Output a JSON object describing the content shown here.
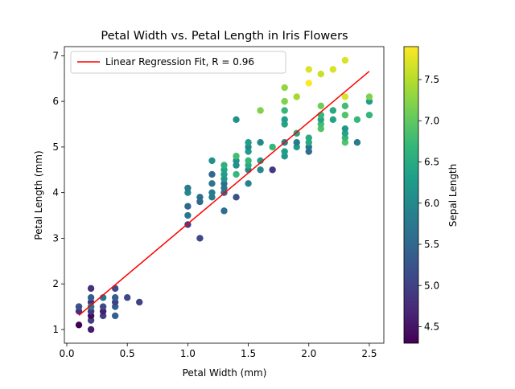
{
  "chart_data": {
    "type": "scatter",
    "title": "Petal Width vs. Petal Length in Iris Flowers",
    "xlabel": "Petal Width (mm)",
    "ylabel": "Petal Length (mm)",
    "xlim": [
      -0.02,
      2.62
    ],
    "ylim": [
      0.7,
      7.2
    ],
    "xticks": [
      0.0,
      0.5,
      1.0,
      1.5,
      2.0,
      2.5
    ],
    "yticks": [
      1,
      2,
      3,
      4,
      5,
      6,
      7
    ],
    "xtick_labels": [
      "0.0",
      "0.5",
      "1.0",
      "1.5",
      "2.0",
      "2.5"
    ],
    "ytick_labels": [
      "1",
      "2",
      "3",
      "4",
      "5",
      "6",
      "7"
    ],
    "grid": false,
    "legend": {
      "placement": "top-left",
      "label": "Linear Regression Fit, R = 0.96",
      "color": "#ff0000"
    },
    "regression": {
      "x": [
        0.1,
        2.5
      ],
      "y": [
        1.31,
        6.66
      ]
    },
    "colorbar": {
      "label": "Sepal Length",
      "range": [
        4.3,
        7.9
      ],
      "ticks": [
        4.5,
        5.0,
        5.5,
        6.0,
        6.5,
        7.0,
        7.5
      ],
      "tick_labels": [
        "4.5",
        "5.0",
        "5.5",
        "6.0",
        "6.5",
        "7.0",
        "7.5"
      ],
      "colormap": [
        "#440154",
        "#482878",
        "#3e4989",
        "#31688e",
        "#26828e",
        "#1f9e89",
        "#35b779",
        "#6ece58",
        "#b5de2b",
        "#fde725"
      ]
    },
    "points": [
      [
        0.1,
        1.1,
        4.3
      ],
      [
        0.1,
        1.5,
        4.9
      ],
      [
        0.1,
        1.4,
        4.8
      ],
      [
        0.1,
        1.5,
        5.2
      ],
      [
        0.2,
        1.0,
        4.6
      ],
      [
        0.2,
        1.2,
        5.0
      ],
      [
        0.2,
        1.3,
        4.4
      ],
      [
        0.2,
        1.4,
        5.1
      ],
      [
        0.2,
        1.4,
        4.9
      ],
      [
        0.2,
        1.5,
        5.4
      ],
      [
        0.2,
        1.6,
        4.8
      ],
      [
        0.2,
        1.7,
        5.4
      ],
      [
        0.2,
        1.9,
        4.8
      ],
      [
        0.2,
        1.5,
        5.7
      ],
      [
        0.3,
        1.3,
        5.0
      ],
      [
        0.3,
        1.4,
        4.6
      ],
      [
        0.3,
        1.5,
        5.1
      ],
      [
        0.3,
        1.7,
        5.7
      ],
      [
        0.4,
        1.3,
        5.4
      ],
      [
        0.4,
        1.5,
        5.4
      ],
      [
        0.4,
        1.6,
        5.0
      ],
      [
        0.4,
        1.7,
        5.4
      ],
      [
        0.4,
        1.9,
        5.1
      ],
      [
        0.5,
        1.7,
        5.1
      ],
      [
        0.6,
        1.6,
        5.0
      ],
      [
        1.0,
        3.3,
        5.0
      ],
      [
        1.0,
        3.5,
        5.7
      ],
      [
        1.0,
        3.7,
        5.5
      ],
      [
        1.0,
        4.0,
        6.0
      ],
      [
        1.0,
        4.1,
        5.8
      ],
      [
        1.1,
        3.0,
        5.1
      ],
      [
        1.1,
        3.8,
        5.5
      ],
      [
        1.1,
        3.9,
        5.6
      ],
      [
        1.2,
        3.9,
        5.8
      ],
      [
        1.2,
        4.0,
        5.8
      ],
      [
        1.2,
        4.2,
        5.7
      ],
      [
        1.2,
        4.4,
        5.5
      ],
      [
        1.2,
        4.7,
        6.1
      ],
      [
        1.3,
        3.6,
        5.6
      ],
      [
        1.3,
        4.0,
        5.5
      ],
      [
        1.3,
        4.1,
        5.7
      ],
      [
        1.3,
        4.2,
        5.6
      ],
      [
        1.3,
        4.3,
        6.2
      ],
      [
        1.3,
        4.4,
        6.3
      ],
      [
        1.3,
        4.5,
        6.4
      ],
      [
        1.3,
        4.6,
        6.6
      ],
      [
        1.4,
        3.9,
        5.2
      ],
      [
        1.4,
        4.4,
        6.7
      ],
      [
        1.4,
        4.6,
        6.1
      ],
      [
        1.4,
        4.7,
        6.1
      ],
      [
        1.4,
        4.8,
        6.8
      ],
      [
        1.4,
        5.6,
        6.1
      ],
      [
        1.5,
        4.2,
        5.9
      ],
      [
        1.5,
        4.5,
        6.0
      ],
      [
        1.5,
        4.6,
        6.5
      ],
      [
        1.5,
        4.7,
        6.7
      ],
      [
        1.5,
        4.9,
        6.3
      ],
      [
        1.5,
        5.0,
        6.0
      ],
      [
        1.5,
        5.1,
        6.3
      ],
      [
        1.6,
        4.5,
        6.0
      ],
      [
        1.6,
        4.7,
        6.3
      ],
      [
        1.6,
        5.1,
        6.0
      ],
      [
        1.6,
        5.8,
        7.2
      ],
      [
        1.7,
        4.5,
        4.9
      ],
      [
        1.7,
        5.0,
        6.7
      ],
      [
        1.8,
        4.8,
        6.2
      ],
      [
        1.8,
        4.9,
        6.3
      ],
      [
        1.8,
        5.1,
        5.9
      ],
      [
        1.8,
        5.5,
        6.4
      ],
      [
        1.8,
        5.6,
        6.3
      ],
      [
        1.8,
        5.8,
        6.7
      ],
      [
        1.8,
        6.0,
        7.2
      ],
      [
        1.8,
        6.3,
        7.3
      ],
      [
        1.9,
        5.0,
        6.3
      ],
      [
        1.9,
        5.1,
        5.8
      ],
      [
        1.9,
        5.3,
        6.4
      ],
      [
        1.9,
        6.1,
        7.4
      ],
      [
        2.0,
        4.9,
        5.6
      ],
      [
        2.0,
        5.0,
        5.7
      ],
      [
        2.0,
        5.1,
        6.5
      ],
      [
        2.0,
        5.2,
        6.5
      ],
      [
        2.0,
        6.4,
        7.9
      ],
      [
        2.0,
        6.7,
        7.7
      ],
      [
        2.1,
        5.4,
        6.9
      ],
      [
        2.1,
        5.5,
        6.8
      ],
      [
        2.1,
        5.6,
        6.4
      ],
      [
        2.1,
        5.7,
        6.7
      ],
      [
        2.1,
        5.9,
        7.1
      ],
      [
        2.1,
        6.6,
        7.6
      ],
      [
        2.2,
        5.6,
        6.4
      ],
      [
        2.2,
        5.8,
        6.5
      ],
      [
        2.2,
        6.7,
        7.7
      ],
      [
        2.3,
        5.1,
        6.9
      ],
      [
        2.3,
        5.2,
        6.7
      ],
      [
        2.3,
        5.3,
        6.4
      ],
      [
        2.3,
        5.4,
        6.2
      ],
      [
        2.3,
        5.7,
        6.9
      ],
      [
        2.3,
        5.9,
        6.8
      ],
      [
        2.3,
        6.1,
        7.7
      ],
      [
        2.3,
        6.9,
        7.7
      ],
      [
        2.4,
        5.1,
        5.8
      ],
      [
        2.4,
        5.6,
        6.7
      ],
      [
        2.5,
        5.7,
        6.7
      ],
      [
        2.5,
        6.0,
        6.3
      ],
      [
        2.5,
        6.1,
        7.2
      ]
    ]
  }
}
